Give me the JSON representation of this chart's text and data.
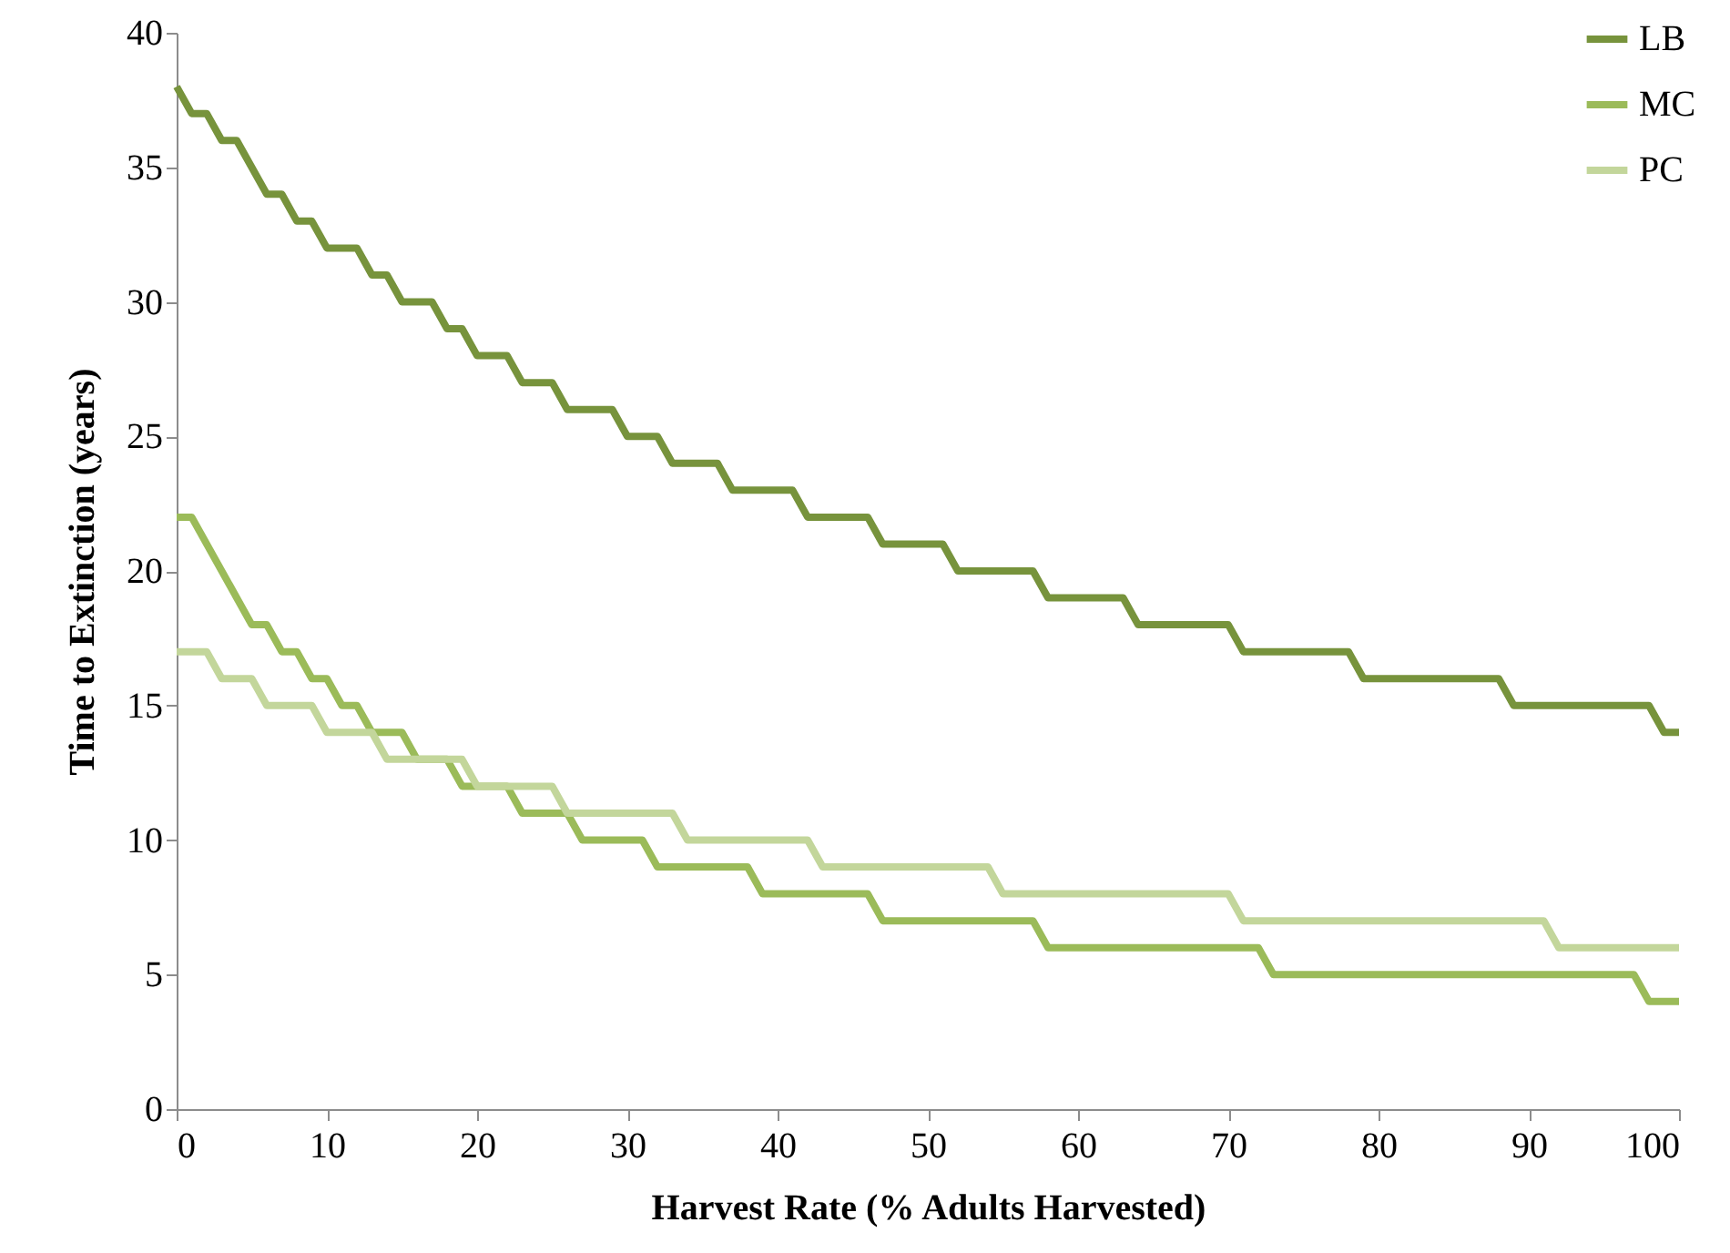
{
  "chart_data": {
    "type": "line",
    "xlabel": "Harvest Rate (% Adults Harvested)",
    "ylabel": "Time to Extinction (years)",
    "xlim": [
      0,
      100
    ],
    "xticks": [
      0,
      10,
      20,
      30,
      40,
      50,
      60,
      70,
      80,
      90,
      100
    ],
    "ylim": [
      0,
      40
    ],
    "yticks": [
      0,
      5,
      10,
      15,
      20,
      25,
      30,
      35,
      40
    ],
    "grid": false,
    "legend": "top right",
    "marker": "none",
    "line_style": "solid",
    "series": [
      {
        "name": "LB",
        "color": "#77933c",
        "x": [
          0,
          1,
          2,
          3,
          4,
          6,
          7,
          8,
          9,
          10,
          12,
          13,
          14,
          15,
          17,
          18,
          19,
          20,
          22,
          23,
          25,
          26,
          29,
          30,
          32,
          33,
          36,
          37,
          41,
          42,
          46,
          47,
          51,
          52,
          57,
          58,
          63,
          64,
          70,
          71,
          78,
          79,
          88,
          89,
          98,
          99,
          100
        ],
        "values": [
          38,
          37,
          37,
          36,
          36,
          34,
          34,
          33,
          33,
          32,
          32,
          31,
          31,
          30,
          30,
          29,
          29,
          28,
          28,
          27,
          27,
          26,
          26,
          25,
          25,
          24,
          24,
          23,
          23,
          22,
          22,
          21,
          21,
          20,
          20,
          19,
          19,
          18,
          18,
          17,
          17,
          16,
          16,
          15,
          15,
          14,
          14
        ]
      },
      {
        "name": "MC",
        "color": "#9bbb59",
        "x": [
          0,
          1,
          5,
          6,
          7,
          8,
          9,
          10,
          11,
          12,
          13,
          15,
          16,
          18,
          19,
          22,
          23,
          26,
          27,
          31,
          32,
          38,
          39,
          46,
          47,
          57,
          58,
          72,
          73,
          97,
          98,
          100
        ],
        "values": [
          22,
          22,
          18,
          18,
          17,
          17,
          16,
          16,
          15,
          15,
          14,
          14,
          13,
          13,
          12,
          12,
          11,
          11,
          10,
          10,
          9,
          9,
          8,
          8,
          7,
          7,
          6,
          6,
          5,
          5,
          4,
          4
        ]
      },
      {
        "name": "PC",
        "color": "#c3d69b",
        "x": [
          0,
          2,
          3,
          5,
          6,
          9,
          10,
          13,
          14,
          19,
          20,
          25,
          26,
          33,
          34,
          42,
          43,
          54,
          55,
          70,
          71,
          91,
          92,
          100
        ],
        "values": [
          17,
          17,
          16,
          16,
          15,
          15,
          14,
          14,
          13,
          13,
          12,
          12,
          11,
          11,
          10,
          10,
          9,
          9,
          8,
          8,
          7,
          7,
          6,
          6
        ]
      }
    ]
  }
}
